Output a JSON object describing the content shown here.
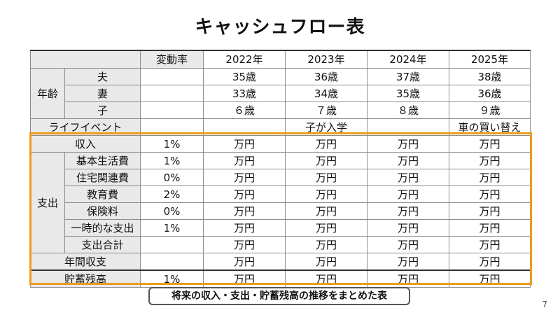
{
  "title": "キャッシュフロー表",
  "header": {
    "rate_label": "変動率",
    "years": [
      "2022年",
      "2023年",
      "2024年",
      "2025年"
    ]
  },
  "age": {
    "label": "年齢",
    "rows": [
      {
        "who": "夫",
        "values": [
          "35歳",
          "36歳",
          "37歳",
          "38歳"
        ]
      },
      {
        "who": "妻",
        "values": [
          "33歳",
          "34歳",
          "35歳",
          "36歳"
        ]
      },
      {
        "who": "子",
        "values": [
          "６歳",
          "７歳",
          "８歳",
          "９歳"
        ]
      }
    ]
  },
  "life_event": {
    "label": "ライフイベント",
    "values": [
      "",
      "子が入学",
      "",
      "車の買い替え"
    ]
  },
  "income": {
    "label": "収入",
    "rate": "1%"
  },
  "expense": {
    "label": "支出",
    "rows": [
      {
        "label": "基本生活費",
        "rate": "1%"
      },
      {
        "label": "住宅関連費",
        "rate": "0%"
      },
      {
        "label": "教育費",
        "rate": "2%"
      },
      {
        "label": "保険料",
        "rate": "0%"
      },
      {
        "label": "一時的な支出",
        "rate": "1%"
      },
      {
        "label": "支出合計",
        "rate": ""
      }
    ]
  },
  "annual_balance": {
    "label": "年間収支"
  },
  "savings": {
    "label": "貯蓄残高",
    "rate": "1%"
  },
  "unit": "万円",
  "caption": "将来の収入・支出・貯蓄残高の推移をまとめた表",
  "page_number": "7",
  "colors": {
    "highlight": "#ee9a1f",
    "label_bg": "#e9e9e9"
  }
}
